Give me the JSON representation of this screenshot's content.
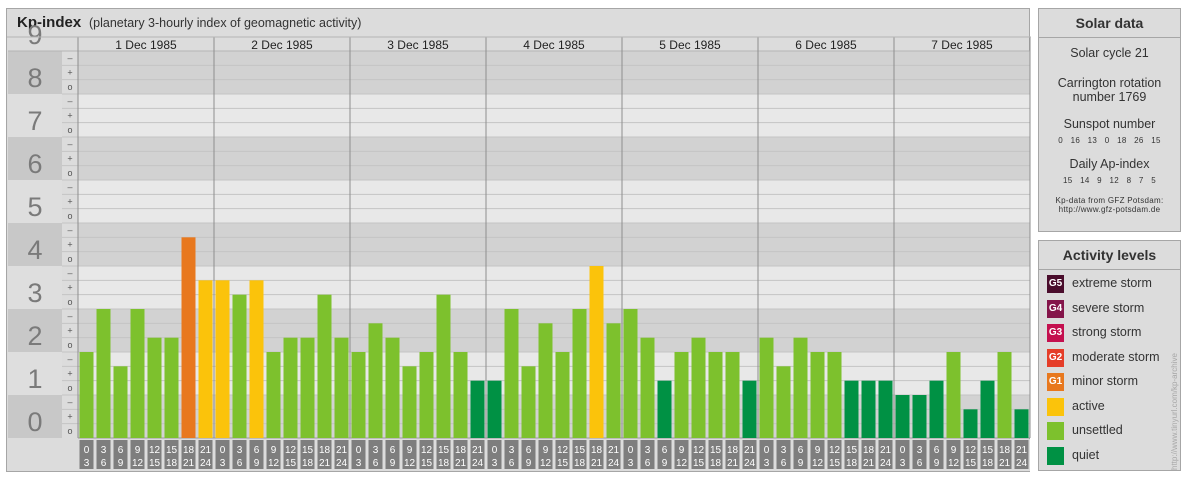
{
  "header": {
    "title": "Kp-index",
    "subtitle": "(planetary 3-hourly index of geomagnetic activity)"
  },
  "chart_data": {
    "type": "bar",
    "ylim": [
      0,
      9
    ],
    "y_ticks": [
      "0",
      "1",
      "2",
      "3",
      "4",
      "5",
      "6",
      "7",
      "8",
      "9"
    ],
    "minor_tick_labels": [
      "o",
      "+",
      "–"
    ],
    "days": [
      "1 Dec 1985",
      "2 Dec 1985",
      "3 Dec 1985",
      "4 Dec 1985",
      "5 Dec 1985",
      "6 Dec 1985",
      "7 Dec 1985"
    ],
    "interval_labels": [
      {
        "start": "0",
        "end": "3"
      },
      {
        "start": "3",
        "end": "6"
      },
      {
        "start": "6",
        "end": "9"
      },
      {
        "start": "9",
        "end": "12"
      },
      {
        "start": "12",
        "end": "15"
      },
      {
        "start": "15",
        "end": "18"
      },
      {
        "start": "18",
        "end": "21"
      },
      {
        "start": "21",
        "end": "24"
      }
    ],
    "values": [
      2.0,
      3.0,
      1.667,
      3.0,
      2.333,
      2.333,
      4.667,
      3.667,
      3.667,
      3.333,
      3.667,
      2.0,
      2.333,
      2.333,
      3.333,
      2.333,
      2.0,
      2.667,
      2.333,
      1.667,
      2.0,
      3.333,
      2.0,
      1.333,
      1.333,
      3.0,
      1.667,
      2.667,
      2.0,
      3.0,
      4.0,
      2.667,
      3.0,
      2.333,
      1.333,
      2.0,
      2.333,
      2.0,
      2.0,
      1.333,
      2.333,
      1.667,
      2.333,
      2.0,
      2.0,
      1.333,
      1.333,
      1.333,
      1.0,
      1.0,
      1.333,
      2.0,
      0.667,
      1.333,
      2.0,
      0.667
    ],
    "colors": {
      "quiet": "#009144",
      "unsettled": "#7dc12d",
      "active": "#fbc30b",
      "G1": "#e8781e",
      "G2": "#e53d28",
      "G3": "#c4104f",
      "G4": "#84154a",
      "G5": "#4a0d2c"
    }
  },
  "solar": {
    "title": "Solar data",
    "cycle": "Solar cycle 21",
    "carrington_line1": "Carrington rotation",
    "carrington_line2": "number 1769",
    "sunspot_title": "Sunspot number",
    "sunspot_values": "0   16   13   0   18   26   15",
    "ap_title": "Daily Ap-index",
    "ap_values": "15   14   9   12   8   7   5",
    "credit_line1": "Kp-data from GFZ Potsdam:",
    "credit_line2": "http://www.gfz-potsdam.de"
  },
  "activity": {
    "title": "Activity levels",
    "levels": [
      {
        "badge": "G5",
        "label": "extreme storm",
        "color": "#4a0d2c"
      },
      {
        "badge": "G4",
        "label": "severe storm",
        "color": "#84154a"
      },
      {
        "badge": "G3",
        "label": "strong storm",
        "color": "#c4104f"
      },
      {
        "badge": "G2",
        "label": "moderate storm",
        "color": "#e53d28"
      },
      {
        "badge": "G1",
        "label": "minor storm",
        "color": "#e8781e"
      },
      {
        "badge": "",
        "label": "active",
        "color": "#fbc30b"
      },
      {
        "badge": "",
        "label": "unsettled",
        "color": "#7dc12d"
      },
      {
        "badge": "",
        "label": "quiet",
        "color": "#009144"
      }
    ]
  },
  "watermark": "http://www.tinyurl.com/kp-archive"
}
